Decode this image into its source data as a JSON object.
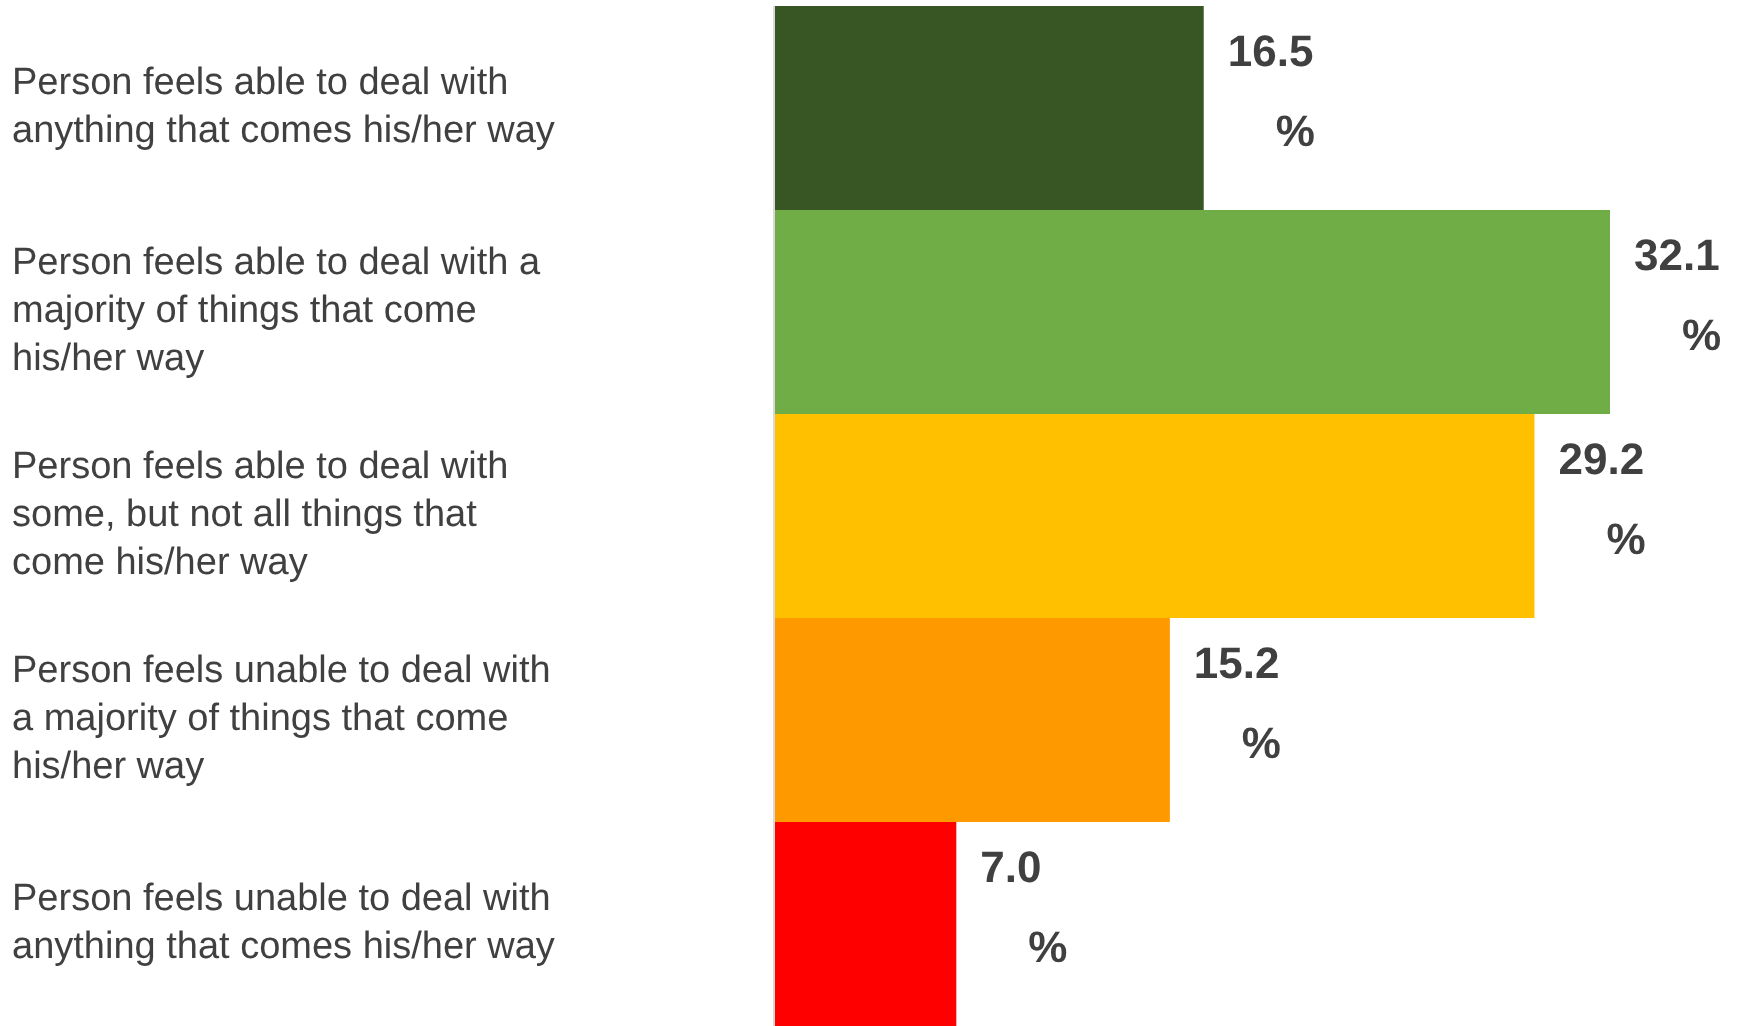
{
  "chart_data": {
    "type": "bar",
    "orientation": "horizontal",
    "categories": [
      "Person feels able to deal with anything that comes his/her way",
      "Person feels able to deal with a majority of things that come his/her way",
      "Person feels able to deal with some, but not all things that come his/her way",
      "Person feels unable to deal with a majority of things that come his/her way",
      "Person feels unable to deal with anything that comes his/her way"
    ],
    "values": [
      16.5,
      32.1,
      29.2,
      15.2,
      7.0
    ],
    "colors": [
      "#375623",
      "#70ad47",
      "#ffc000",
      "#ff9900",
      "#ff0000"
    ],
    "value_labels": [
      "16.5 %",
      "32.1 %",
      "29.2 %",
      "15.2 %",
      "7.0 %"
    ]
  }
}
